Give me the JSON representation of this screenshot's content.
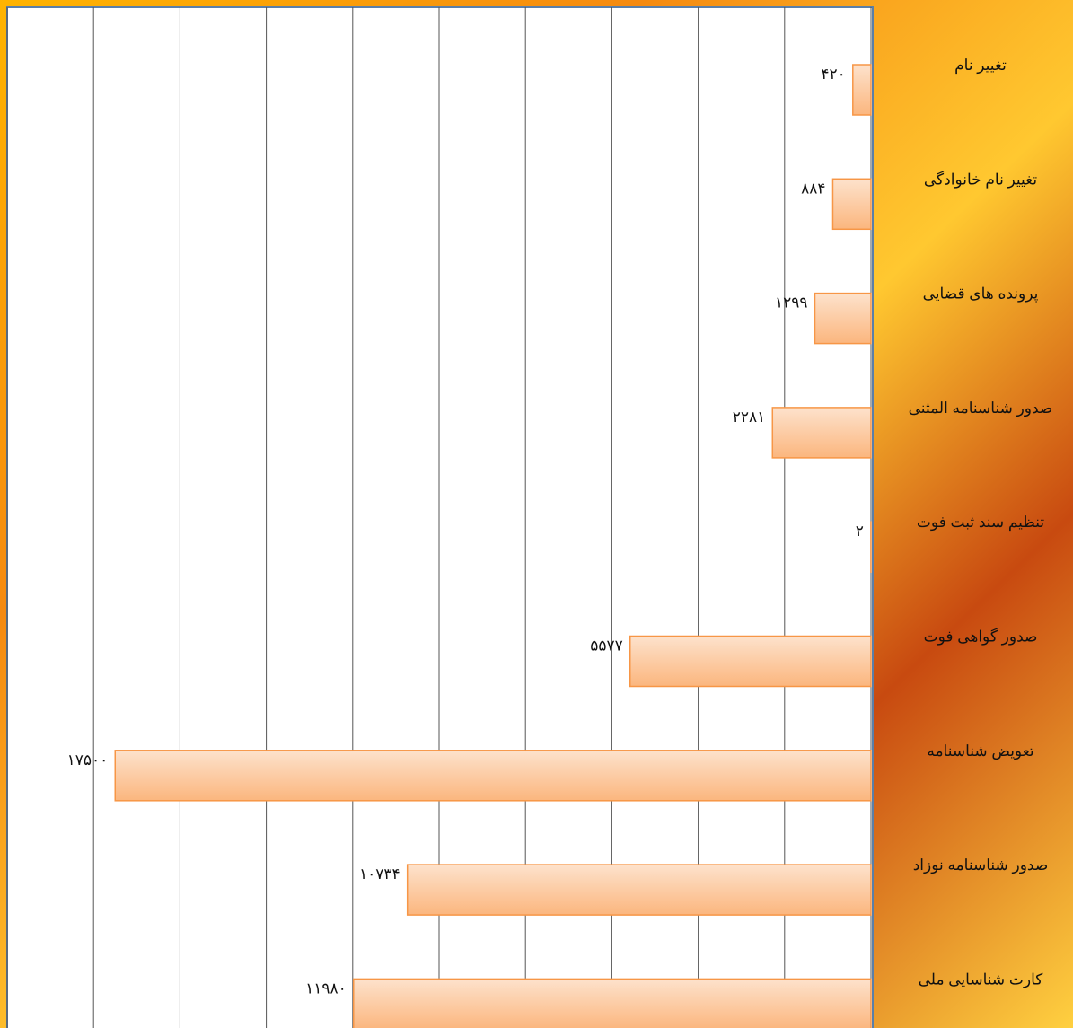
{
  "chart_data": {
    "type": "barh",
    "categories": [
      "تغییر نام",
      "تغییر نام خانوادگی",
      "پرونده های قضایی",
      "صدور شناسنامه المثنی",
      "تنظیم  سند ثبت فوت",
      "صدور گواهی فوت",
      "تعویض شناسنامه",
      "صدور شناسنامه نوزاد",
      "کارت شناسایی ملی"
    ],
    "values": [
      420,
      884,
      1299,
      2281,
      2,
      5577,
      17500,
      10734,
      11980
    ],
    "value_labels": [
      "۴۲۰",
      "۸۸۴",
      "۱۲۹۹",
      "۲۲۸۱",
      "۲",
      "۵۵۷۷",
      "۱۷۵۰۰",
      "۱۰۷۳۴",
      "۱۱۹۸۰"
    ],
    "color": "#f79646",
    "xlim": [
      0,
      20000
    ],
    "xticks": [
      0,
      2000,
      4000,
      6000,
      8000,
      10000,
      12000,
      14000,
      16000,
      18000,
      20000
    ],
    "grid": true
  }
}
